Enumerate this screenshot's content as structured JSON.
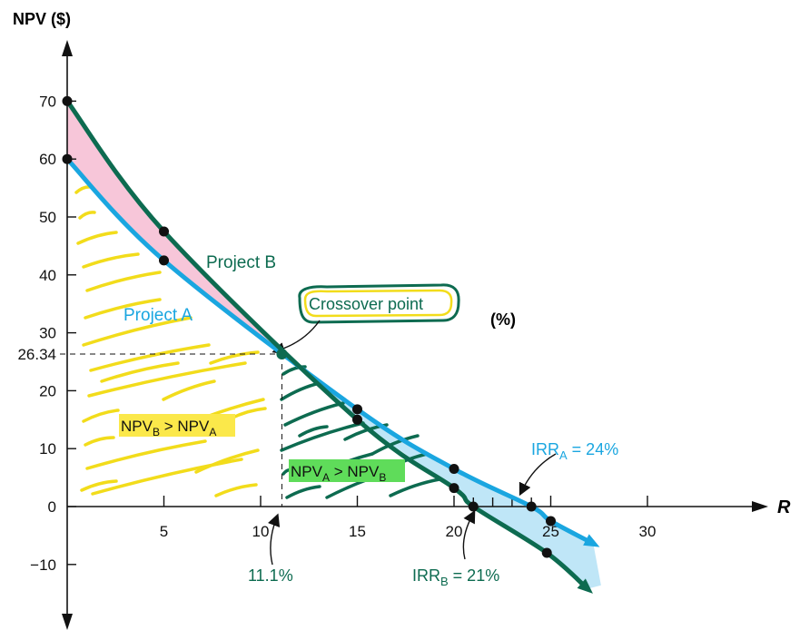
{
  "chart_data": {
    "type": "line",
    "ylabel": "NPV ($)",
    "xlabel": "R",
    "x_unit_label": "(%)",
    "xlim": [
      0,
      35
    ],
    "ylim": [
      -20,
      80
    ],
    "x_ticks": [
      5,
      10,
      15,
      20,
      25,
      30
    ],
    "y_ticks": [
      70,
      60,
      50,
      40,
      30,
      20,
      10,
      0,
      -10
    ],
    "y_tick_labels": [
      "70",
      "60",
      "50",
      "40",
      "30",
      "20",
      "10",
      "0",
      "−10"
    ],
    "crossover_y_label": "26.34",
    "series": [
      {
        "name": "Project A",
        "color": "#1aa6e0",
        "points": [
          [
            0,
            60
          ],
          [
            5,
            42.5
          ],
          [
            15,
            16.8
          ],
          [
            20,
            6.5
          ],
          [
            24,
            0
          ],
          [
            25,
            -2.5
          ]
        ]
      },
      {
        "name": "Project B",
        "color": "#0d6b50",
        "points": [
          [
            0,
            70
          ],
          [
            5,
            47.5
          ],
          [
            15,
            15
          ],
          [
            20,
            3.2
          ],
          [
            21,
            0
          ],
          [
            24.8,
            -8
          ]
        ]
      }
    ],
    "crossover": {
      "x": 11.1,
      "y": 26.34
    },
    "annotations": {
      "crossover_label": "Crossover point",
      "crossover_x_label": "11.1%",
      "irr_a_label": "IRR",
      "irr_a_sub": "A",
      "irr_a_value": " = 24%",
      "irr_b_label": "IRR",
      "irr_b_sub": "B",
      "irr_b_value": " = 21%",
      "region_left_npv1": "NPV",
      "region_left_sub1": "B",
      "region_left_mid": " > NPV",
      "region_left_sub2": "A",
      "region_right_npv1": "NPV",
      "region_right_sub1": "A",
      "region_right_mid": " > NPV",
      "region_right_sub2": "B"
    },
    "colors": {
      "project_a": "#1aa6e0",
      "project_b": "#0d6b50",
      "pink_fill": "#f7c6d9",
      "blue_fill": "#bfe6f7",
      "yellow_highlight": "#fbe84a",
      "green_highlight": "#5fdc5a",
      "hatch_yellow": "#f2dc1b",
      "hatch_green": "#0d6b50"
    }
  }
}
